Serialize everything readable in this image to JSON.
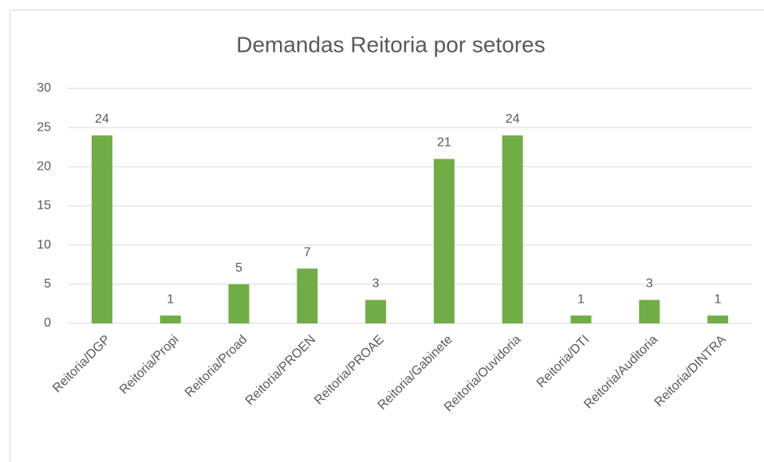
{
  "chart_data": {
    "type": "bar",
    "title": "Demandas Reitoria por setores",
    "categories": [
      "Reitoria/DGP",
      "Reitoria/Propi",
      "Reitoria/Proad",
      "Reitoria/PROEN",
      "Reitoria/PROAE",
      "Reitoria/Gabinete",
      "Reitoria/Ouvidoria",
      "Reitoria/DTI",
      "Reitoria/Auditoria",
      "Reitoria/DINTRA"
    ],
    "values": [
      24,
      1,
      5,
      7,
      3,
      21,
      24,
      1,
      3,
      1
    ],
    "color": "#70ad47",
    "ylim": [
      0,
      30
    ],
    "yticks": [
      0,
      5,
      10,
      15,
      20,
      25,
      30
    ],
    "grid": true,
    "data_labels": true
  }
}
